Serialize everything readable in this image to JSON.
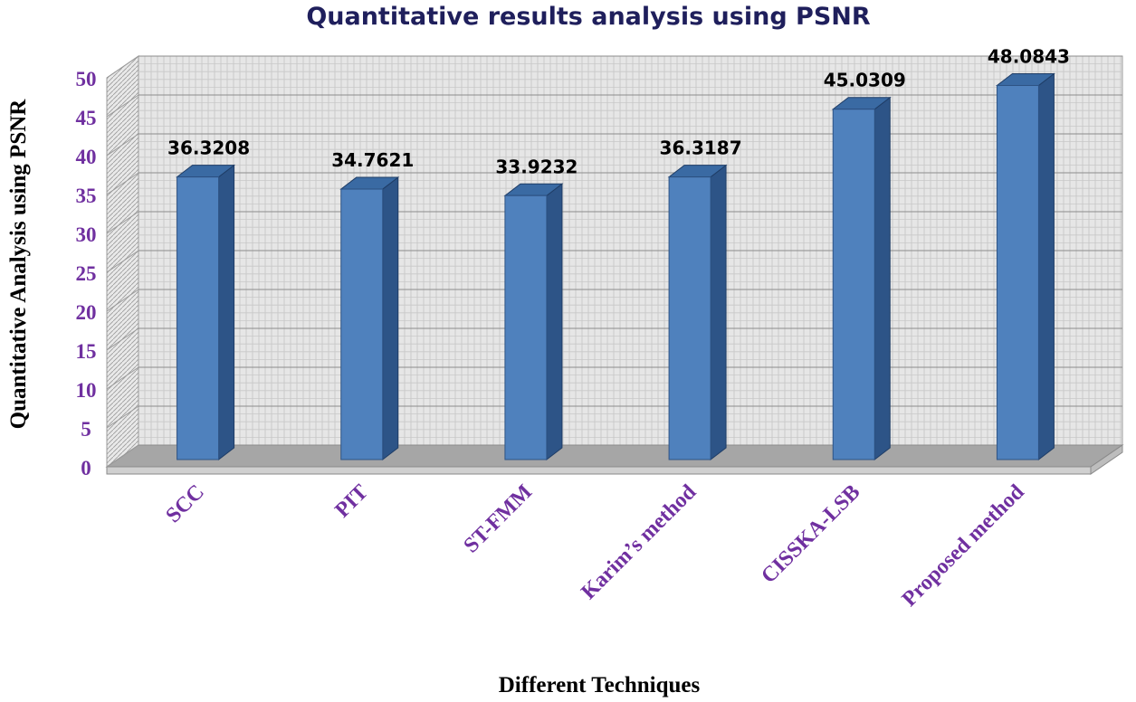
{
  "chart_data": {
    "type": "bar",
    "title": "Quantitative results analysis using PSNR",
    "xlabel": "Different Techniques",
    "ylabel": "Quantitative Analysis using PSNR",
    "categories": [
      "SCC",
      "PIT",
      "ST-FMM",
      "Karim’s method",
      "CISSKA-LSB",
      "Proposed method"
    ],
    "values": [
      36.3208,
      34.7621,
      33.9232,
      36.3187,
      45.0309,
      48.0843
    ],
    "data_labels": [
      "36.3208",
      "34.7621",
      "33.9232",
      "36.3187",
      "45.0309",
      "48.0843"
    ],
    "yticks": [
      "0",
      "5",
      "10",
      "15",
      "20",
      "25",
      "30",
      "35",
      "40",
      "45",
      "50"
    ],
    "ylim": [
      0,
      50
    ],
    "grid": true,
    "legend": "none",
    "colors": {
      "bar_front": "#4F81BD",
      "bar_side": "#2D5487",
      "bar_top": "#3A6AA3",
      "wall": "#E6E6E6",
      "floor": "#A6A6A6",
      "title": "#1F1F5C",
      "tick_label": "#7030A0",
      "category_label": "#7030A0",
      "axis_title": "#000000",
      "data_label": "#000000"
    }
  }
}
